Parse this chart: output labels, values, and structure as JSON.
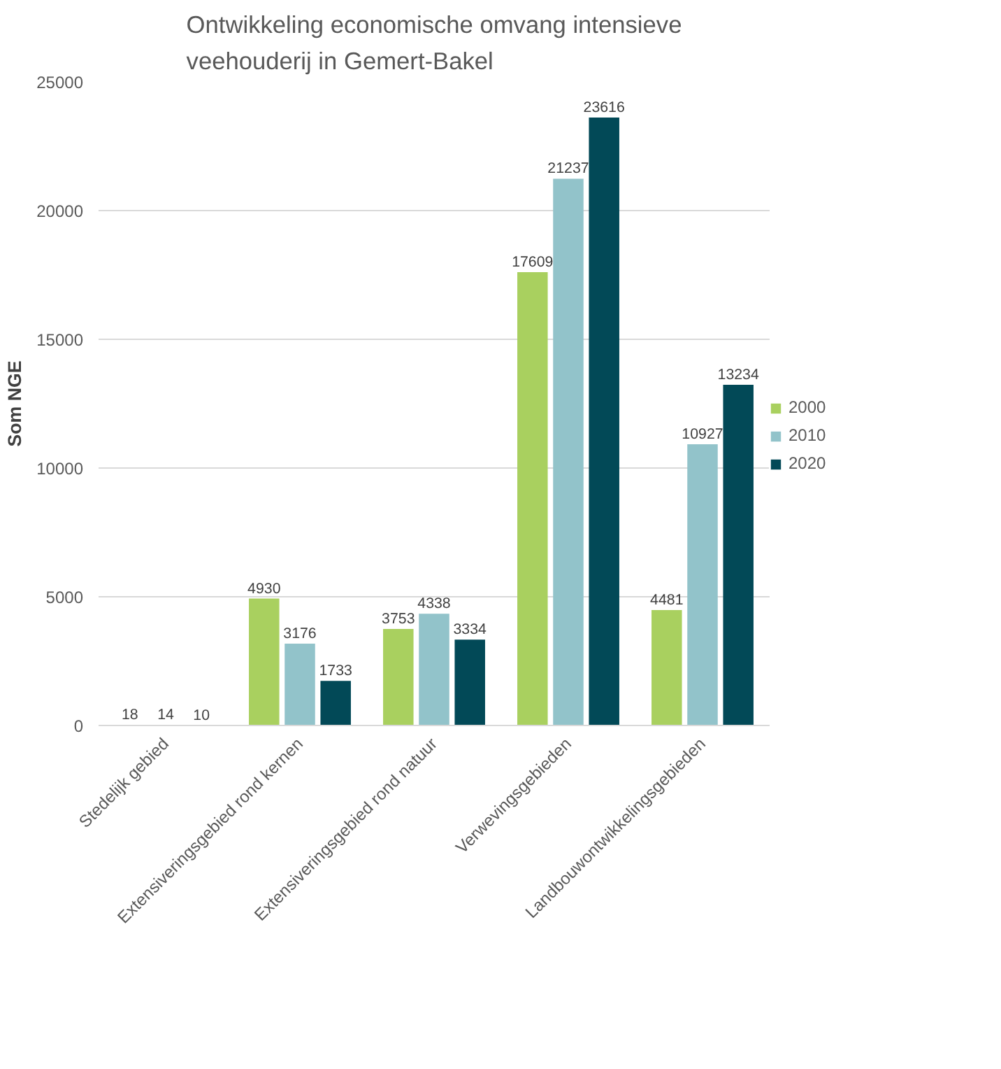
{
  "chart_data": {
    "type": "bar",
    "title": "Ontwikkeling economische omvang intensieve veehouderij in Gemert-Bakel",
    "ylabel": "Som NGE",
    "categories": [
      "Stedelijk gebied",
      "Extensiveringsgebied rond kernen",
      "Extensiveringsgebied rond natuur",
      "Verwevingsgebieden",
      "Landbouwontwikkelingsgebieden"
    ],
    "series": [
      {
        "name": "2000",
        "color": "#a9d05f",
        "values": [
          18,
          4930,
          3753,
          17609,
          4481
        ]
      },
      {
        "name": "2010",
        "color": "#92c3ca",
        "values": [
          14,
          3176,
          4338,
          21237,
          10927
        ]
      },
      {
        "name": "2020",
        "color": "#024957",
        "values": [
          10,
          1733,
          3334,
          23616,
          13234
        ]
      }
    ],
    "ylim": [
      0,
      25000
    ],
    "yticks": [
      0,
      5000,
      10000,
      15000,
      20000,
      25000
    ],
    "grid": "y",
    "legend": "right",
    "data_labels": true
  }
}
